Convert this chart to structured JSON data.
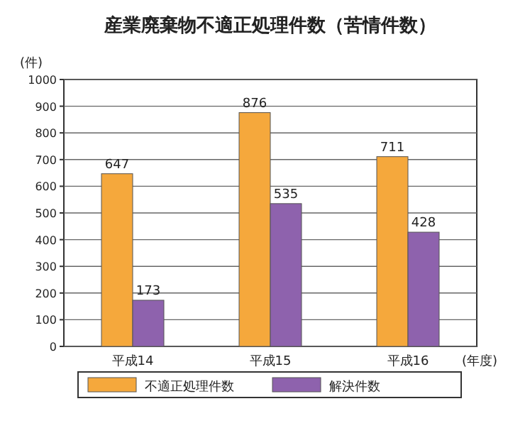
{
  "chart_data": {
    "type": "bar",
    "title": "産業廃棄物不適正処理件数（苦情件数）",
    "ylabel": "(件)",
    "xlabel": "(年度)",
    "categories": [
      "平成14",
      "平成15",
      "平成16"
    ],
    "series": [
      {
        "name": "不適正処理件数",
        "color": "#f5a83c",
        "values": [
          647,
          876,
          711
        ]
      },
      {
        "name": "解決件数",
        "color": "#8e62ad",
        "values": [
          173,
          535,
          428
        ]
      }
    ],
    "ylim": [
      0,
      1000
    ],
    "yticks": [
      0,
      100,
      200,
      300,
      400,
      500,
      600,
      700,
      800,
      900,
      1000
    ],
    "grid": "y",
    "legend": "bottom",
    "data_labels": true
  }
}
